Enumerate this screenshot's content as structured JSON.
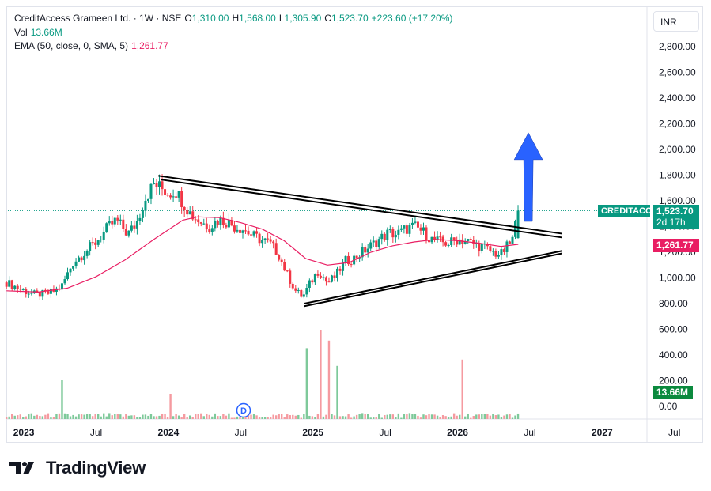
{
  "header": {
    "symbol_title": "CreditAccess Grameen Ltd. · 1W · NSE",
    "o_label": "O",
    "o_value": "1,310.00",
    "h_label": "H",
    "h_value": "1,568.00",
    "l_label": "L",
    "l_value": "1,305.90",
    "c_label": "C",
    "c_value": "1,523.70",
    "change": "+223.60 (+17.20%)",
    "vol_label": "Vol",
    "vol_value": "13.66M",
    "ema_label": "EMA (50, close, 0, SMA, 5)",
    "ema_value": "1,261.77"
  },
  "currency": "INR",
  "price_tag": {
    "symbol": "CREDITACC",
    "price": "1,523.70",
    "countdown": "2d 17h"
  },
  "ema_tag": "1,261.77",
  "volume_tag": "13.66M",
  "event_marker": "D",
  "brand": "TradingView",
  "colors": {
    "up": "#089981",
    "down": "#f23645",
    "ema": "#e91e63",
    "arrow": "#2962ff",
    "vol_up": "#7ec99a",
    "vol_down": "#f59aa0"
  },
  "chart_data": {
    "type": "candlestick",
    "interval": "1W",
    "x_tick_labels": [
      "2023",
      "Jul",
      "2024",
      "Jul",
      "2025",
      "Jul",
      "2026",
      "Jul",
      "2027",
      "Jul"
    ],
    "price_axis": {
      "ticks": [
        "0.00",
        "200.00",
        "400.00",
        "600.00",
        "800.00",
        "1,000.00",
        "1,200.00",
        "1,400.00",
        "1,600.00",
        "1,800.00",
        "2,000.00",
        "2,200.00",
        "2,400.00",
        "2,600.00",
        "2,800.00"
      ],
      "ylim": [
        -60,
        2950
      ]
    },
    "price_path": [
      [
        2022.88,
        965
      ],
      [
        2023.0,
        900
      ],
      [
        2023.08,
        870
      ],
      [
        2023.18,
        880
      ],
      [
        2023.26,
        930
      ],
      [
        2023.34,
        1120
      ],
      [
        2023.42,
        1200
      ],
      [
        2023.5,
        1280
      ],
      [
        2023.58,
        1390
      ],
      [
        2023.64,
        1450
      ],
      [
        2023.72,
        1340
      ],
      [
        2023.78,
        1430
      ],
      [
        2023.84,
        1620
      ],
      [
        2023.9,
        1730
      ],
      [
        2023.95,
        1700
      ],
      [
        2024.0,
        1660
      ],
      [
        2024.05,
        1680
      ],
      [
        2024.1,
        1590
      ],
      [
        2024.16,
        1490
      ],
      [
        2024.22,
        1440
      ],
      [
        2024.28,
        1400
      ],
      [
        2024.34,
        1450
      ],
      [
        2024.4,
        1440
      ],
      [
        2024.46,
        1400
      ],
      [
        2024.52,
        1380
      ],
      [
        2024.58,
        1330
      ],
      [
        2024.64,
        1300
      ],
      [
        2024.7,
        1270
      ],
      [
        2024.76,
        1190
      ],
      [
        2024.82,
        1030
      ],
      [
        2024.88,
        900
      ],
      [
        2024.93,
        850
      ],
      [
        2024.98,
        960
      ],
      [
        2025.04,
        1060
      ],
      [
        2025.1,
        960
      ],
      [
        2025.16,
        1020
      ],
      [
        2025.22,
        1130
      ],
      [
        2025.28,
        1150
      ],
      [
        2025.34,
        1200
      ],
      [
        2025.4,
        1250
      ],
      [
        2025.46,
        1300
      ],
      [
        2025.52,
        1350
      ],
      [
        2025.58,
        1340
      ],
      [
        2025.64,
        1380
      ],
      [
        2025.7,
        1400
      ],
      [
        2025.76,
        1360
      ],
      [
        2025.82,
        1300
      ],
      [
        2025.88,
        1280
      ],
      [
        2025.94,
        1270
      ],
      [
        2026.0,
        1300
      ],
      [
        2026.06,
        1290
      ],
      [
        2026.12,
        1260
      ],
      [
        2026.18,
        1240
      ],
      [
        2026.24,
        1200
      ],
      [
        2026.3,
        1180
      ],
      [
        2026.34,
        1240
      ],
      [
        2026.38,
        1300
      ],
      [
        2026.42,
        1523.7
      ]
    ],
    "last_candle": {
      "o": 1310.0,
      "h": 1568.0,
      "l": 1305.9,
      "c": 1523.7
    },
    "ema_path": [
      [
        2022.88,
        900
      ],
      [
        2023.1,
        890
      ],
      [
        2023.3,
        920
      ],
      [
        2023.5,
        1010
      ],
      [
        2023.7,
        1140
      ],
      [
        2023.9,
        1300
      ],
      [
        2024.1,
        1450
      ],
      [
        2024.2,
        1475
      ],
      [
        2024.35,
        1470
      ],
      [
        2024.5,
        1430
      ],
      [
        2024.65,
        1380
      ],
      [
        2024.8,
        1290
      ],
      [
        2024.95,
        1150
      ],
      [
        2025.1,
        1100
      ],
      [
        2025.25,
        1120
      ],
      [
        2025.4,
        1200
      ],
      [
        2025.55,
        1250
      ],
      [
        2025.7,
        1280
      ],
      [
        2025.85,
        1300
      ],
      [
        2026.0,
        1290
      ],
      [
        2026.15,
        1270
      ],
      [
        2026.3,
        1245
      ],
      [
        2026.42,
        1261.77
      ]
    ],
    "volume_spikes": [
      [
        2023.25,
        310
      ],
      [
        2024.0,
        200
      ],
      [
        2024.95,
        560
      ],
      [
        2025.04,
        700
      ],
      [
        2025.1,
        620
      ],
      [
        2025.16,
        420
      ],
      [
        2026.02,
        470
      ],
      [
        2026.42,
        140
      ]
    ],
    "trendlines": [
      {
        "from": [
          2023.93,
          1795
        ],
        "to": [
          2026.72,
          1345
        ]
      },
      {
        "from": [
          2023.95,
          1765
        ],
        "to": [
          2026.72,
          1315
        ]
      },
      {
        "from": [
          2024.94,
          800
        ],
        "to": [
          2026.72,
          1210
        ]
      },
      {
        "from": [
          2024.94,
          780
        ],
        "to": [
          2026.72,
          1190
        ]
      }
    ],
    "arrow": {
      "x": 2026.49,
      "from": 1440,
      "to": 2130
    }
  }
}
